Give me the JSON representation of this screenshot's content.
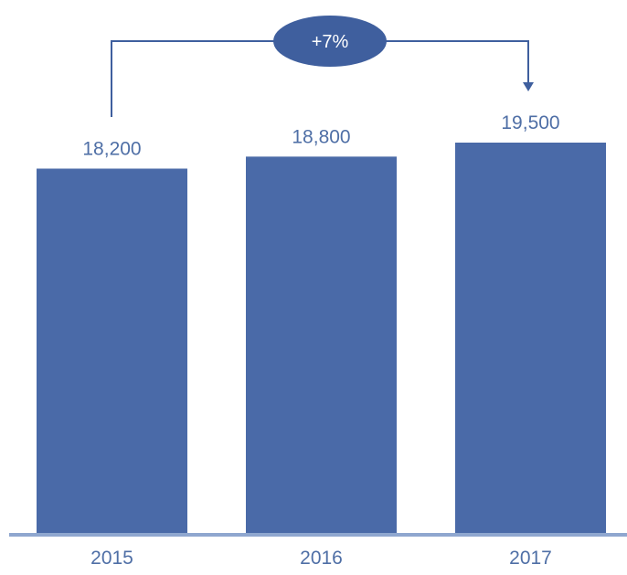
{
  "chart_data": {
    "type": "bar",
    "categories": [
      "2015",
      "2016",
      "2017"
    ],
    "values": [
      18200,
      18800,
      19500
    ],
    "value_labels": [
      "18,200",
      "18,800",
      "19,500"
    ],
    "title": "",
    "xlabel": "",
    "ylabel": "",
    "ylim": [
      0,
      19500
    ],
    "grid": false,
    "legend": "none",
    "annotation": {
      "label": "+7%",
      "from_category": "2015",
      "to_category": "2017"
    },
    "colors": {
      "bar": "#4a6aa8",
      "baseline": "#8fa7cf",
      "annotation": "#3f5f9e",
      "value_label": "#4f6fa6",
      "category_label": "#4f6fa6",
      "annotation_text": "#ffffff"
    }
  }
}
